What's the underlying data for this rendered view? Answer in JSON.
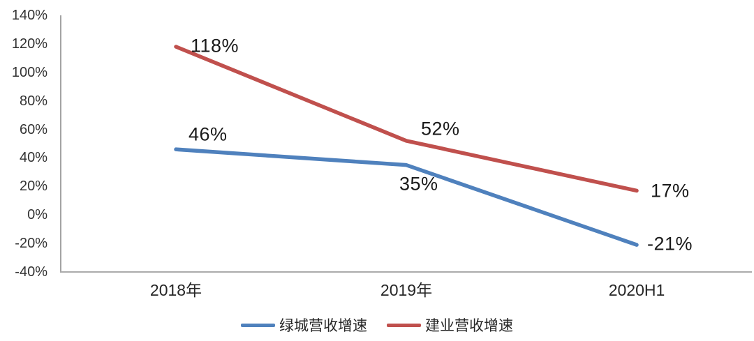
{
  "chart_data": {
    "type": "line",
    "categories": [
      "2018年",
      "2019年",
      "2020H1"
    ],
    "series": [
      {
        "name": "绿城营收增速",
        "color": "#4F81BD",
        "values": [
          46,
          35,
          -21
        ],
        "labels": [
          "46%",
          "35%",
          "-21%"
        ]
      },
      {
        "name": "建业营收增速",
        "color": "#C0504D",
        "values": [
          118,
          52,
          17
        ],
        "labels": [
          "118%",
          "52%",
          "17%"
        ]
      }
    ],
    "y_axis": {
      "min": -40,
      "max": 140,
      "step": 20,
      "tick_labels": [
        "140%",
        "120%",
        "100%",
        "80%",
        "60%",
        "40%",
        "20%",
        "0%",
        "-20%",
        "-40%"
      ],
      "line_color": "#8C8C8C"
    },
    "x_axis": {
      "line_color": "#ABABAB"
    },
    "grid": false,
    "legend_position": "bottom"
  }
}
